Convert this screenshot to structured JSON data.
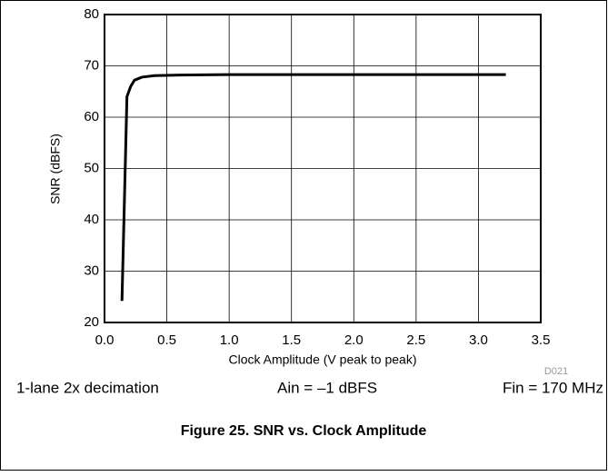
{
  "chart_data": {
    "type": "line",
    "x_label": "Clock Amplitude (V peak to peak)",
    "y_label": "SNR (dBFS)",
    "x": [
      0.14,
      0.18,
      0.21,
      0.24,
      0.3,
      0.4,
      0.6,
      1.0,
      3.22
    ],
    "values": [
      24.2,
      64,
      66,
      67.2,
      67.8,
      68.1,
      68.2,
      68.3,
      68.3
    ],
    "color": "#000000",
    "xlim": [
      0,
      3.5
    ],
    "xticks": [
      {
        "value": 0,
        "label": "0.0"
      },
      0.5,
      {
        "value": 1,
        "label": "1.0"
      },
      1.5,
      {
        "value": 2,
        "label": "2.0"
      },
      2.5,
      {
        "value": 3,
        "label": "3.0"
      },
      3.5
    ],
    "ylim": [
      20,
      80
    ],
    "yticks": [
      20,
      30,
      40,
      50,
      60,
      70,
      80
    ],
    "grid": true,
    "figure_id": "D021",
    "annotations": [
      "1-lane 2x decimation",
      "Ain = –1 dBFS",
      "Fin = 170 MHz"
    ],
    "caption": "Figure 25. SNR vs. Clock Amplitude"
  }
}
